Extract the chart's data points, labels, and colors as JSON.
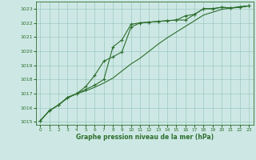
{
  "title": "Graphe pression niveau de la mer (hPa)",
  "background_color": "#cde8e4",
  "grid_color": "#9ec8c4",
  "line_color": "#2d6e2d",
  "xlim": [
    -0.5,
    23.5
  ],
  "ylim": [
    1014.8,
    1023.5
  ],
  "yticks": [
    1015,
    1016,
    1017,
    1018,
    1019,
    1020,
    1021,
    1022,
    1023
  ],
  "xticks": [
    0,
    1,
    2,
    3,
    4,
    5,
    6,
    7,
    8,
    9,
    10,
    11,
    12,
    13,
    14,
    15,
    16,
    17,
    18,
    19,
    20,
    21,
    22,
    23
  ],
  "series1_x": [
    0,
    1,
    2,
    3,
    4,
    5,
    6,
    7,
    8,
    9,
    10,
    11,
    12,
    13,
    14,
    15,
    16,
    17,
    18,
    19,
    20,
    21,
    22,
    23
  ],
  "series1_y": [
    1015.1,
    1015.8,
    1016.2,
    1016.7,
    1017.0,
    1017.3,
    1017.6,
    1018.0,
    1020.3,
    1020.8,
    1021.9,
    1022.0,
    1022.05,
    1022.1,
    1022.15,
    1022.2,
    1022.5,
    1022.6,
    1023.0,
    1023.0,
    1023.1,
    1023.05,
    1023.1,
    1023.2
  ],
  "series2_x": [
    0,
    1,
    2,
    3,
    4,
    5,
    6,
    7,
    8,
    9,
    10,
    11,
    12,
    13,
    14,
    15,
    16,
    17,
    18,
    19,
    20,
    21,
    22,
    23
  ],
  "series2_y": [
    1015.1,
    1015.8,
    1016.2,
    1016.7,
    1017.0,
    1017.5,
    1018.3,
    1019.3,
    1019.6,
    1019.95,
    1021.7,
    1022.0,
    1022.05,
    1022.1,
    1022.15,
    1022.2,
    1022.2,
    1022.6,
    1023.0,
    1023.0,
    1023.1,
    1023.05,
    1023.1,
    1023.2
  ],
  "series3_x": [
    0,
    1,
    2,
    3,
    4,
    5,
    6,
    7,
    8,
    9,
    10,
    11,
    12,
    13,
    14,
    15,
    16,
    17,
    18,
    19,
    20,
    21,
    22,
    23
  ],
  "series3_y": [
    1015.1,
    1015.8,
    1016.2,
    1016.75,
    1017.0,
    1017.2,
    1017.45,
    1017.75,
    1018.1,
    1018.6,
    1019.1,
    1019.5,
    1020.0,
    1020.5,
    1020.95,
    1021.35,
    1021.75,
    1022.15,
    1022.55,
    1022.75,
    1022.95,
    1023.05,
    1023.15,
    1023.2
  ]
}
